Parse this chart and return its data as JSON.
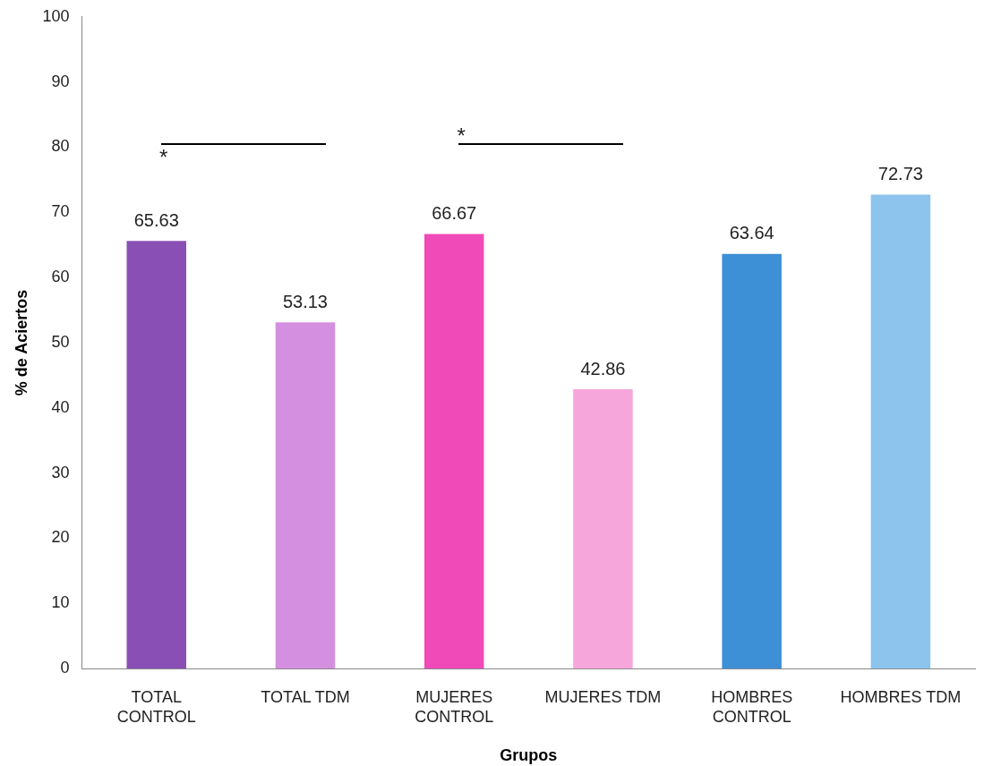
{
  "chart_data": {
    "type": "bar",
    "xlabel": "Grupos",
    "ylabel": "% de Aciertos",
    "categories": [
      "TOTAL CONTROL",
      "TOTAL TDM",
      "MUJERES CONTROL",
      "MUJERES TDM",
      "HOMBRES CONTROL",
      "HOMBRES TDM"
    ],
    "values": [
      65.63,
      53.13,
      66.67,
      42.86,
      63.64,
      72.73
    ],
    "colors": [
      "#8a4fb5",
      "#d58fe0",
      "#f04ab8",
      "#f7a6dc",
      "#3d8fd6",
      "#8cc4ee"
    ],
    "ylim": [
      0,
      100
    ],
    "yticks": [
      0,
      10,
      20,
      30,
      40,
      50,
      60,
      70,
      80,
      90,
      100
    ],
    "grid": false,
    "legend": false,
    "data_labels": true,
    "annotations": [
      "*",
      "*"
    ]
  }
}
